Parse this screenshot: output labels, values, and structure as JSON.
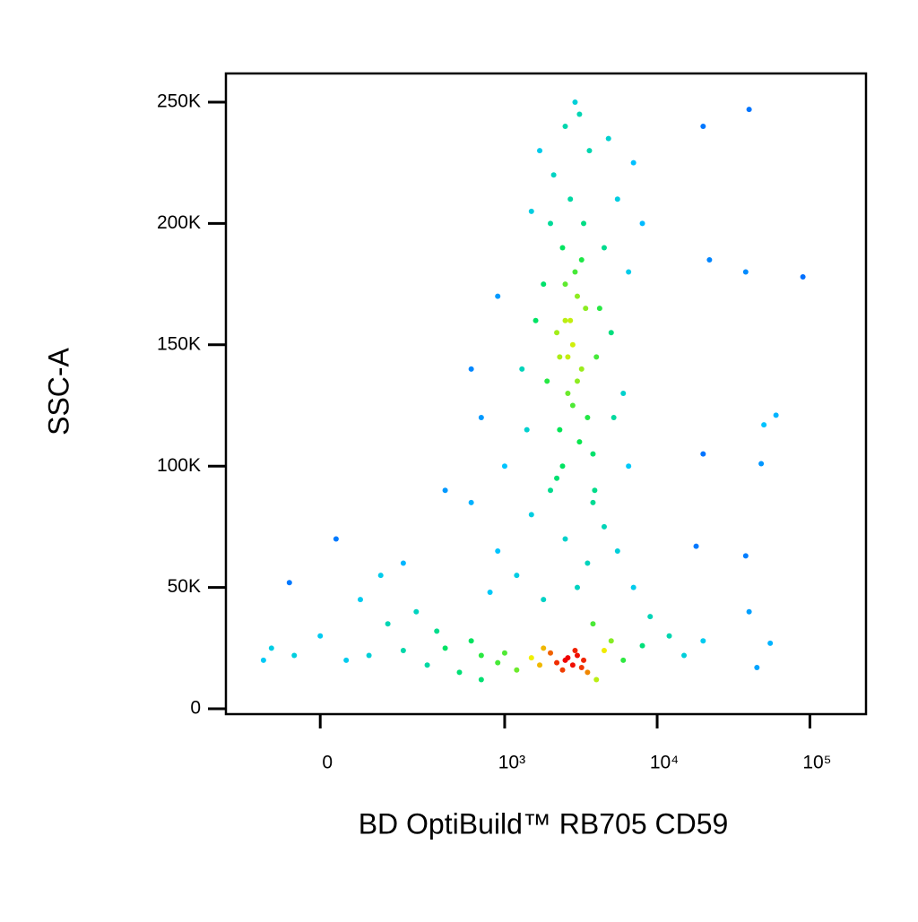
{
  "chart_data": {
    "type": "scatter",
    "coloring": "density",
    "x_label": "BD OptiBuild™ RB705 CD59",
    "y_label": "SSC-A",
    "xscale": "biexponential",
    "xlim": [
      -243,
      233000
    ],
    "ylim": [
      -2200,
      261800
    ],
    "xticks": [
      0,
      {
        "value": 1000,
        "label": "10³"
      },
      {
        "value": 10000,
        "label": "10⁴"
      },
      {
        "value": 100000,
        "label": "10⁵"
      }
    ],
    "yticks": [
      0,
      {
        "value": 50000,
        "label": "50K"
      },
      {
        "value": 100000,
        "label": "100K"
      },
      {
        "value": 150000,
        "label": "150K"
      },
      {
        "value": 200000,
        "label": "200K"
      },
      {
        "value": 250000,
        "label": "250K"
      }
    ],
    "x": [
      2800,
      2500,
      3200,
      2600,
      3000,
      2200,
      3500,
      2900,
      2400,
      3300,
      2700,
      2100,
      3600,
      2500,
      3100,
      1800,
      4200,
      1900,
      4000,
      2300,
      3800,
      2000,
      4500,
      1600,
      5000,
      2800,
      3400,
      2600,
      3100,
      2400,
      1500,
      5500,
      1700,
      4800,
      2900,
      6500,
      1300,
      6000,
      2200,
      3900,
      1400,
      5200,
      7000,
      900,
      8000,
      2700,
      3000,
      2500,
      3200,
      2300,
      1500,
      2500,
      3500,
      1200,
      4500,
      1800,
      3000,
      900,
      600,
      400,
      5500,
      2000,
      3800,
      7000,
      800,
      1000,
      700,
      600,
      6500,
      2500,
      2800,
      3000,
      2200,
      1500,
      1000,
      700,
      400,
      200,
      100,
      50,
      -50,
      -100,
      0,
      150,
      300,
      500,
      1200,
      1800,
      3500,
      4500,
      5000,
      6000,
      8000,
      12000,
      3200,
      2600,
      2000,
      900,
      600,
      350,
      250,
      80,
      -60,
      30,
      200,
      130,
      3800,
      9000,
      15000,
      20000,
      2900,
      2400,
      1700,
      3300,
      -120,
      700,
      4000,
      40000,
      20000,
      90000,
      38000,
      22000,
      60000,
      50000,
      48000,
      20000,
      18000,
      38000,
      40000,
      55000,
      45000
    ],
    "values": [
      150000,
      160000,
      140000,
      130000,
      170000,
      155000,
      120000,
      180000,
      190000,
      200000,
      210000,
      220000,
      230000,
      240000,
      245000,
      175000,
      165000,
      135000,
      145000,
      115000,
      105000,
      200000,
      190000,
      160000,
      155000,
      125000,
      165000,
      145000,
      110000,
      100000,
      205000,
      210000,
      230000,
      235000,
      250000,
      180000,
      140000,
      130000,
      95000,
      90000,
      115000,
      120000,
      225000,
      170000,
      200000,
      160000,
      135000,
      175000,
      185000,
      145000,
      80000,
      70000,
      60000,
      55000,
      75000,
      45000,
      50000,
      65000,
      85000,
      90000,
      65000,
      90000,
      85000,
      50000,
      48000,
      100000,
      120000,
      140000,
      100000,
      20000,
      18000,
      22000,
      19000,
      21000,
      23000,
      22000,
      25000,
      24000,
      22000,
      20000,
      22000,
      25000,
      30000,
      35000,
      18000,
      15000,
      16000,
      25000,
      15000,
      24000,
      28000,
      20000,
      26000,
      30000,
      17000,
      21000,
      23000,
      19000,
      28000,
      32000,
      40000,
      45000,
      52000,
      70000,
      60000,
      55000,
      35000,
      38000,
      22000,
      28000,
      24000,
      16000,
      18000,
      20000,
      20000,
      12000,
      12000,
      247000,
      240000,
      178000,
      180000,
      185000,
      121000,
      117000,
      101000,
      105000,
      67000,
      63000,
      40000,
      27000,
      17000
    ]
  }
}
